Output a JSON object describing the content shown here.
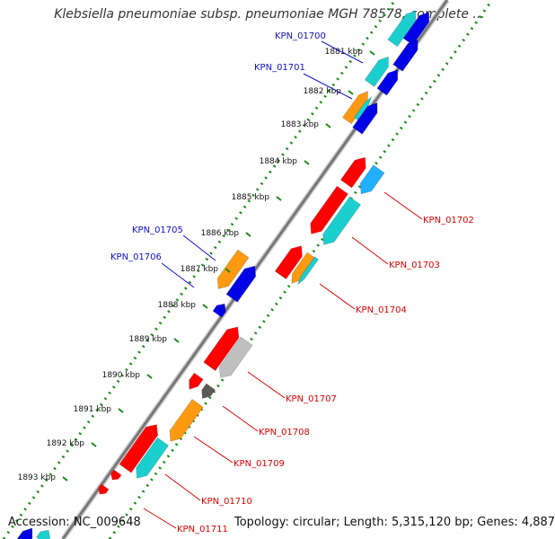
{
  "title": "Klebsiella pneumoniae subsp. pneumoniae MGH 78578, complete ...",
  "footer": {
    "accession": "Accession: NC_009648",
    "topology": "Topology: circular; Length: 5,315,120 bp; Genes: 4,887"
  },
  "colors": {
    "red": "#ff0000",
    "cyan": "#1ccfcf",
    "orange": "#ff9a10",
    "blue": "#0000e6",
    "light_blue": "#20b0ff",
    "gray": "#c0c0c0",
    "dark_gray": "#5a5a5a",
    "tick_green": "#1a8a1a",
    "label_red": "#dd0000",
    "label_blue": "#1010cc"
  },
  "ticks": [
    {
      "label": "1881 kbp"
    },
    {
      "label": "1882 kbp"
    },
    {
      "label": "1883 kbp"
    },
    {
      "label": "1884 kbp"
    },
    {
      "label": "1885 kbp"
    },
    {
      "label": "1886 kbp"
    },
    {
      "label": "1887 kbp"
    },
    {
      "label": "1888 kbp"
    },
    {
      "label": "1889 kbp"
    },
    {
      "label": "1890 kbp"
    },
    {
      "label": "1891 kbp"
    },
    {
      "label": "1892 kbp"
    },
    {
      "label": "1893 kbp"
    }
  ],
  "gene_labels_left": [
    "KPN_01700",
    "KPN_01701",
    "KPN_01705",
    "KPN_01706"
  ],
  "gene_labels_right": [
    "KPN_01702",
    "KPN_01703",
    "KPN_01704",
    "KPN_01707",
    "KPN_01708",
    "KPN_01709",
    "KPN_01710",
    "KPN_01711"
  ]
}
